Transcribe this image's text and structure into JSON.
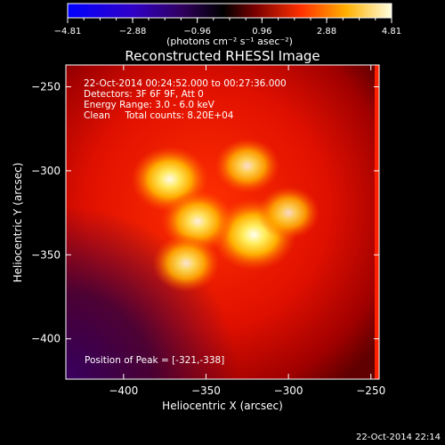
{
  "chart_data": {
    "type": "heatmap",
    "title": "Reconstructed RHESSI Image",
    "xlabel": "Heliocentric X (arcsec)",
    "ylabel": "Heliocentric Y (arcsec)",
    "xlim": [
      -435,
      -245
    ],
    "ylim": [
      -424,
      -237
    ],
    "xticks": [
      -400,
      -350,
      -300,
      -250
    ],
    "yticks": [
      -250,
      -300,
      -350,
      -400
    ],
    "colorbar": {
      "min": -4.81,
      "max": 4.81,
      "ticks": [
        -4.81,
        -2.88,
        -0.96,
        0.96,
        2.88,
        4.81
      ],
      "label": "(photons cm⁻² s⁻¹ asec⁻²)"
    },
    "info_lines": [
      "22-Oct-2014 00:24:52.000 to 00:27:36.000",
      "Detectors: 3F 6F 9F, Att 0",
      "Energy Range: 3.0 - 6.0 keV",
      "Clean     Total counts: 8.20E+04"
    ],
    "peak_label": "Position of Peak = [-321,-338]",
    "peak": {
      "x": -321,
      "y": -338,
      "value": 4.81
    },
    "sources": [
      {
        "x": -321,
        "y": -338,
        "value": 4.81
      },
      {
        "x": -372,
        "y": -305,
        "value": 4.2
      },
      {
        "x": -355,
        "y": -330,
        "value": 3.8
      },
      {
        "x": -362,
        "y": -355,
        "value": 3.4
      },
      {
        "x": -325,
        "y": -297,
        "value": 3.2
      },
      {
        "x": -300,
        "y": -325,
        "value": 3.0
      }
    ]
  },
  "timestamp": "22-Oct-2014 22:14"
}
